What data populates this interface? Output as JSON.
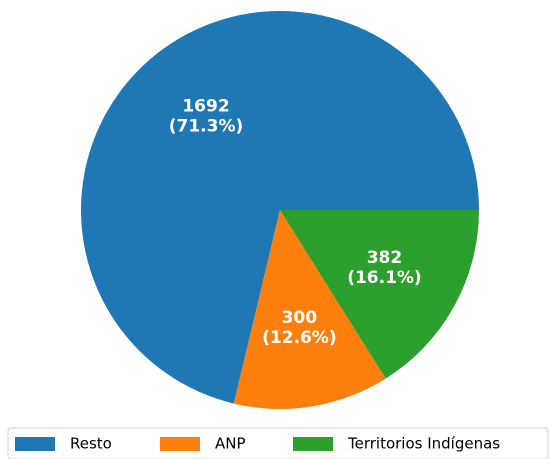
{
  "chart_data": {
    "type": "pie",
    "categories": [
      "Resto",
      "ANP",
      "Territorios Indígenas"
    ],
    "values": [
      1692,
      300,
      382
    ],
    "value_labels": [
      [
        "1692",
        "(71.3%)"
      ],
      [
        "300",
        "(12.6%)"
      ],
      [
        "382",
        "(16.1%)"
      ]
    ],
    "colors": [
      "#1f77b4",
      "#ff7f0e",
      "#2ca02c"
    ],
    "legend": "bottom"
  }
}
